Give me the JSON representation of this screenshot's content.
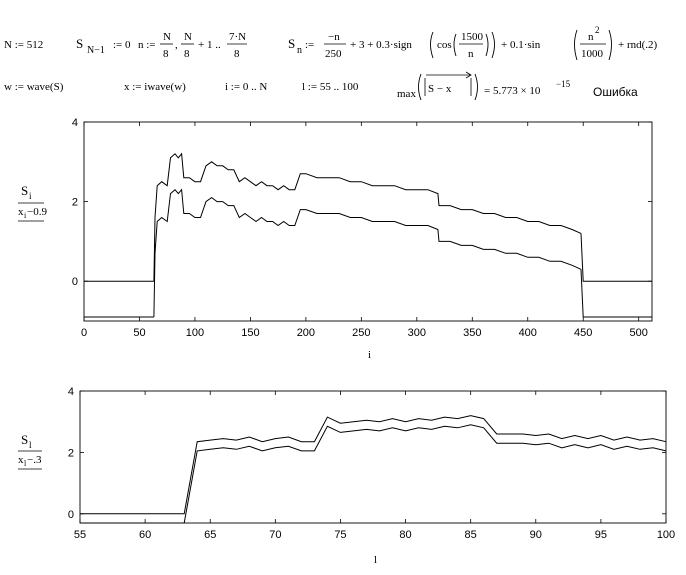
{
  "worksheet": {
    "row1": {
      "n_def": "N := 512",
      "sn1_def": "S",
      "sn1_sub": "N−1",
      "sn1_rhs": ":= 0",
      "range_lhs": "n :=",
      "range_N": "N",
      "range_den1": "8",
      "range_comma": ",",
      "range_plus": "+ 1 ..",
      "range_7N": "7·N",
      "range_den2": "8",
      "sn_lhs": "S",
      "sn_sub": "n",
      "sn_assign": ":=",
      "frac_num": "−n",
      "frac_den": "250",
      "plus3": "+ 3 + 0.3·sign",
      "cos": "cos",
      "c1500": "1500",
      "cn": "n",
      "plus01": "+ 0.1·sin",
      "n2": "n",
      "n2_exp": "2",
      "d1000": "1000",
      "rnd": "+ rnd(.2)"
    },
    "row2": {
      "w_def": "w := wave(S)",
      "x_def": "x := iwave(w)",
      "i_def": "i := 0 .. N",
      "l_def": "l := 55 .. 100",
      "max_label": "max",
      "max_arg": "S − x",
      "max_eq": "= 5.773 × 10",
      "max_exp": "−15",
      "error_label": "Ошибка"
    }
  },
  "chart_data": [
    {
      "type": "line",
      "x_variable": "i",
      "xlabel": "i",
      "ylabel_top": "S",
      "ylabel_top_sub": "i",
      "ylabel_bottom": "x",
      "ylabel_bottom_sub": "i",
      "ylabel_bottom_suffix": "−0.9",
      "xlim": [
        0,
        512
      ],
      "ylim": [
        -1,
        4
      ],
      "x_ticks": [
        0,
        50,
        100,
        150,
        200,
        250,
        300,
        350,
        400,
        450,
        500
      ],
      "y_ticks": [
        0,
        2,
        4
      ],
      "grid": false,
      "series": [
        {
          "offset": 0,
          "segments": [
            {
              "x": [
                0,
                63
              ],
              "y": [
                0,
                0
              ]
            },
            {
              "x": [
                63,
                64,
                66,
                70,
                75,
                78,
                82,
                85,
                88,
                90,
                95,
                100,
                105,
                110,
                115,
                120,
                125,
                130,
                135,
                140,
                145,
                150,
                155,
                160,
                165,
                170,
                175,
                180,
                185,
                190,
                195,
                200,
                210,
                220,
                230,
                240,
                250,
                260,
                270,
                280,
                290,
                300,
                310,
                319,
                320,
                330,
                340,
                350,
                360,
                370,
                380,
                390,
                400,
                410,
                420,
                430,
                440,
                448
              ],
              "y": [
                0,
                1.6,
                2.4,
                2.5,
                2.4,
                3.1,
                3.2,
                3.1,
                3.2,
                2.6,
                2.6,
                2.5,
                2.5,
                2.9,
                3.0,
                2.9,
                2.9,
                2.8,
                2.8,
                2.5,
                2.6,
                2.5,
                2.4,
                2.5,
                2.4,
                2.4,
                2.3,
                2.4,
                2.3,
                2.3,
                2.7,
                2.7,
                2.6,
                2.6,
                2.6,
                2.5,
                2.5,
                2.4,
                2.4,
                2.4,
                2.3,
                2.3,
                2.3,
                2.2,
                1.9,
                1.9,
                1.8,
                1.8,
                1.7,
                1.7,
                1.6,
                1.6,
                1.5,
                1.5,
                1.4,
                1.4,
                1.3,
                1.2
              ]
            },
            {
              "x": [
                448,
                450,
                512
              ],
              "y": [
                1.2,
                0,
                0
              ]
            }
          ]
        },
        {
          "offset": -0.9,
          "segments": [
            {
              "x": [
                0,
                63
              ],
              "y": [
                -0.9,
                -0.9
              ]
            },
            {
              "x": [
                63,
                64,
                66,
                70,
                75,
                78,
                82,
                85,
                88,
                90,
                95,
                100,
                105,
                110,
                115,
                120,
                125,
                130,
                135,
                140,
                145,
                150,
                155,
                160,
                165,
                170,
                175,
                180,
                185,
                190,
                195,
                200,
                210,
                220,
                230,
                240,
                250,
                260,
                270,
                280,
                290,
                300,
                310,
                319,
                320,
                330,
                340,
                350,
                360,
                370,
                380,
                390,
                400,
                410,
                420,
                430,
                440,
                448
              ],
              "y": [
                -0.9,
                0.7,
                1.5,
                1.6,
                1.5,
                2.2,
                2.3,
                2.2,
                2.3,
                1.7,
                1.7,
                1.6,
                1.6,
                2.0,
                2.1,
                2.0,
                2.0,
                1.9,
                1.9,
                1.6,
                1.7,
                1.6,
                1.5,
                1.6,
                1.5,
                1.5,
                1.4,
                1.5,
                1.4,
                1.4,
                1.8,
                1.8,
                1.7,
                1.7,
                1.7,
                1.6,
                1.6,
                1.5,
                1.5,
                1.5,
                1.4,
                1.4,
                1.4,
                1.3,
                1.0,
                1.0,
                0.9,
                0.9,
                0.8,
                0.8,
                0.7,
                0.7,
                0.6,
                0.6,
                0.5,
                0.5,
                0.4,
                0.3
              ]
            },
            {
              "x": [
                448,
                450,
                512
              ],
              "y": [
                0.3,
                -0.9,
                -0.9
              ]
            }
          ]
        }
      ]
    },
    {
      "type": "line",
      "x_variable": "l",
      "xlabel": "l",
      "ylabel_top": "S",
      "ylabel_top_sub": "l",
      "ylabel_bottom": "x",
      "ylabel_bottom_sub": "l",
      "ylabel_bottom_suffix": "−.3",
      "xlim": [
        55,
        100
      ],
      "ylim": [
        -0.3,
        4
      ],
      "x_ticks": [
        55,
        60,
        65,
        70,
        75,
        80,
        85,
        90,
        95,
        100
      ],
      "y_ticks": [
        0,
        2,
        4
      ],
      "grid": false,
      "series": [
        {
          "offset": 0,
          "x": [
            55,
            56,
            57,
            58,
            59,
            60,
            61,
            62,
            63,
            64,
            65,
            66,
            67,
            68,
            69,
            70,
            71,
            72,
            73,
            74,
            75,
            76,
            77,
            78,
            79,
            80,
            81,
            82,
            83,
            84,
            85,
            86,
            87,
            88,
            89,
            90,
            91,
            92,
            93,
            94,
            95,
            96,
            97,
            98,
            99,
            100
          ],
          "y": [
            0,
            0,
            0,
            0,
            0,
            0,
            0,
            0,
            0,
            2.35,
            2.4,
            2.45,
            2.4,
            2.5,
            2.35,
            2.45,
            2.5,
            2.35,
            2.35,
            3.15,
            2.95,
            3.0,
            3.05,
            3.0,
            3.1,
            3.0,
            3.1,
            3.05,
            3.15,
            3.1,
            3.2,
            3.1,
            2.6,
            2.6,
            2.6,
            2.55,
            2.6,
            2.45,
            2.55,
            2.45,
            2.55,
            2.4,
            2.5,
            2.4,
            2.45,
            2.35
          ]
        },
        {
          "offset": -0.3,
          "x": [
            55,
            56,
            57,
            58,
            59,
            60,
            61,
            62,
            63,
            64,
            65,
            66,
            67,
            68,
            69,
            70,
            71,
            72,
            73,
            74,
            75,
            76,
            77,
            78,
            79,
            80,
            81,
            82,
            83,
            84,
            85,
            86,
            87,
            88,
            89,
            90,
            91,
            92,
            93,
            94,
            95,
            96,
            97,
            98,
            99,
            100
          ],
          "y": [
            -0.3,
            -0.3,
            -0.3,
            -0.3,
            -0.3,
            -0.3,
            -0.3,
            -0.3,
            -0.3,
            2.05,
            2.1,
            2.15,
            2.1,
            2.2,
            2.05,
            2.15,
            2.2,
            2.05,
            2.05,
            2.85,
            2.65,
            2.7,
            2.75,
            2.7,
            2.8,
            2.7,
            2.8,
            2.75,
            2.85,
            2.8,
            2.9,
            2.8,
            2.3,
            2.3,
            2.3,
            2.25,
            2.3,
            2.15,
            2.25,
            2.15,
            2.25,
            2.1,
            2.2,
            2.1,
            2.15,
            2.05
          ]
        }
      ]
    }
  ]
}
